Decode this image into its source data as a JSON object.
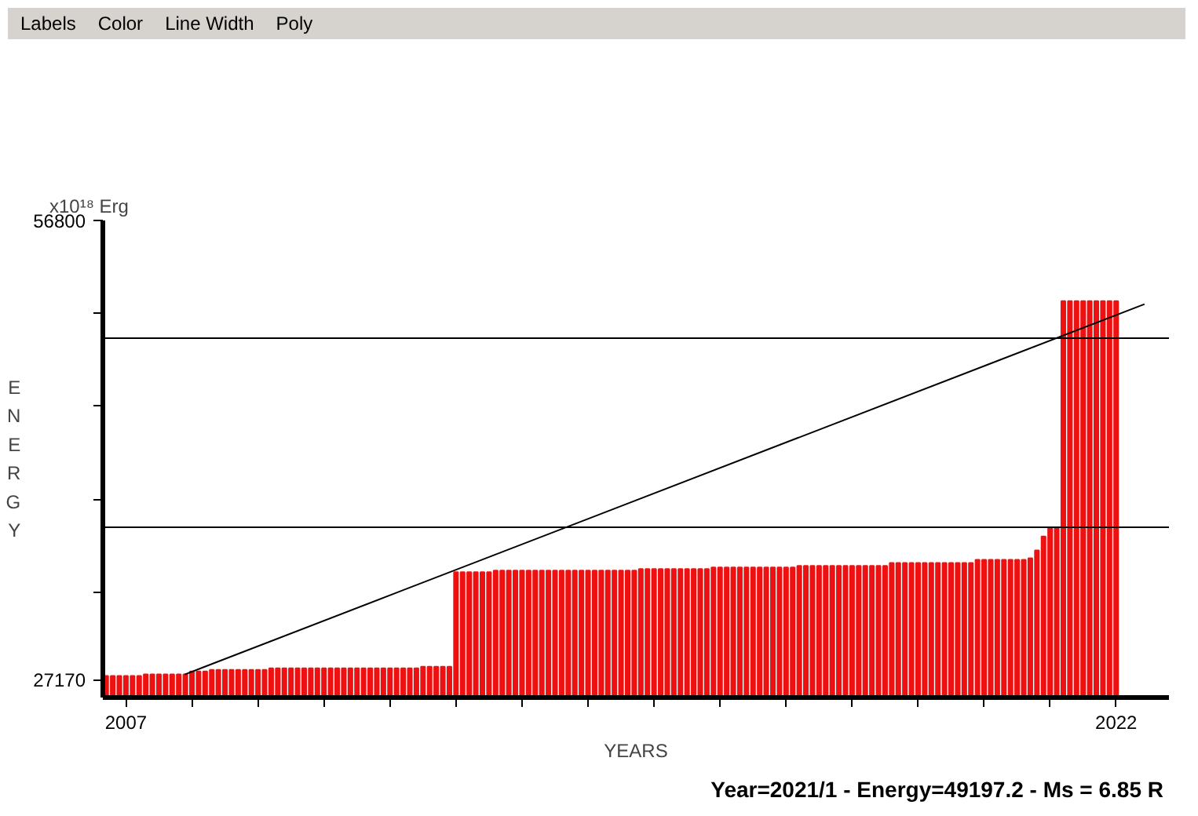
{
  "chart_data": {
    "type": "bar",
    "xlabel": "YEARS",
    "ylabel": "ENERGY",
    "annotations": [
      "Labels",
      "Color",
      "Line Width",
      "Poly",
      "x10¹⁸ Erg",
      "Year=2021/1 - Energy=49197.2 - Ms = 6.85 R"
    ],
    "x": [
      2006.7,
      2006.8,
      2006.9,
      2007.0,
      2007.1,
      2007.2,
      2007.3,
      2007.4,
      2007.5,
      2007.6,
      2007.7,
      2007.8,
      2007.9,
      2008.0,
      2008.1,
      2008.2,
      2008.3,
      2008.4,
      2008.5,
      2008.6,
      2008.7,
      2008.8,
      2008.9,
      2009.0,
      2009.1,
      2009.2,
      2009.3,
      2009.4,
      2009.5,
      2009.6,
      2009.7,
      2009.8,
      2009.9,
      2010.0,
      2010.1,
      2010.2,
      2010.3,
      2010.4,
      2010.5,
      2010.6,
      2010.7,
      2010.8,
      2010.9,
      2011.0,
      2011.1,
      2011.2,
      2011.3,
      2011.4,
      2011.5,
      2011.6,
      2011.7,
      2011.8,
      2011.9,
      2012.0,
      2012.1,
      2012.2,
      2012.3,
      2012.4,
      2012.5,
      2012.6,
      2012.7,
      2012.8,
      2012.9,
      2013.0,
      2013.1,
      2013.2,
      2013.3,
      2013.4,
      2013.5,
      2013.6,
      2013.7,
      2013.8,
      2013.9,
      2014.0,
      2014.1,
      2014.2,
      2014.3,
      2014.4,
      2014.5,
      2014.6,
      2014.7,
      2014.8,
      2014.9,
      2015.0,
      2015.1,
      2015.2,
      2015.3,
      2015.4,
      2015.5,
      2015.6,
      2015.7,
      2015.8,
      2015.9,
      2016.0,
      2016.1,
      2016.2,
      2016.3,
      2016.4,
      2016.5,
      2016.6,
      2016.7,
      2016.8,
      2016.9,
      2017.0,
      2017.1,
      2017.2,
      2017.3,
      2017.4,
      2017.5,
      2017.6,
      2017.7,
      2017.8,
      2017.9,
      2018.0,
      2018.1,
      2018.2,
      2018.3,
      2018.4,
      2018.5,
      2018.6,
      2018.7,
      2018.8,
      2018.9,
      2019.0,
      2019.1,
      2019.2,
      2019.3,
      2019.4,
      2019.5,
      2019.6,
      2019.7,
      2019.8,
      2019.9,
      2020.0,
      2020.1,
      2020.2,
      2020.3,
      2020.4,
      2020.5,
      2020.6,
      2020.7,
      2020.8,
      2020.9,
      2021.0,
      2021.1,
      2021.2,
      2021.3,
      2021.4,
      2021.5,
      2021.6,
      2021.7,
      2021.8,
      2021.9,
      2022.0
    ],
    "series": [
      {
        "color": "#ee1111",
        "values": [
          27400,
          27400,
          27400,
          27400,
          27400,
          27400,
          27500,
          27500,
          27500,
          27500,
          27500,
          27500,
          27500,
          27700,
          27700,
          27700,
          27800,
          27800,
          27800,
          27800,
          27800,
          27800,
          27800,
          27800,
          27800,
          27900,
          27900,
          27900,
          27900,
          27900,
          27900,
          27900,
          27900,
          27900,
          27900,
          27900,
          27900,
          27900,
          27900,
          27900,
          27900,
          27900,
          27900,
          27900,
          27900,
          27900,
          27900,
          27900,
          28000,
          28000,
          28000,
          28000,
          28000,
          34100,
          34100,
          34100,
          34100,
          34100,
          34100,
          34200,
          34200,
          34200,
          34200,
          34200,
          34200,
          34200,
          34200,
          34200,
          34200,
          34200,
          34200,
          34200,
          34200,
          34200,
          34200,
          34200,
          34200,
          34200,
          34200,
          34200,
          34200,
          34300,
          34300,
          34300,
          34300,
          34300,
          34300,
          34300,
          34300,
          34300,
          34300,
          34300,
          34400,
          34400,
          34400,
          34400,
          34400,
          34400,
          34400,
          34400,
          34400,
          34400,
          34400,
          34400,
          34400,
          34500,
          34500,
          34500,
          34500,
          34500,
          34500,
          34500,
          34500,
          34500,
          34500,
          34500,
          34500,
          34500,
          34500,
          34700,
          34700,
          34700,
          34700,
          34700,
          34700,
          34700,
          34700,
          34700,
          34700,
          34700,
          34700,
          34700,
          34900,
          34900,
          34900,
          34900,
          34900,
          34900,
          34900,
          34900,
          35000,
          35500,
          36400,
          37000,
          37000,
          51600,
          51600,
          51600,
          51600,
          51600,
          51600,
          51600,
          51600,
          51600
        ]
      },
      {
        "type": "line",
        "color": "#000000",
        "x": [
          2007.89,
          2022.43
        ],
        "values": [
          27500,
          51400
        ]
      }
    ],
    "xlim": [
      2006.65,
      2022.8
    ],
    "xticks": [
      2007,
      {
        "value": 2008,
        "label": null
      },
      {
        "value": 2009,
        "label": null
      },
      {
        "value": 2010,
        "label": null
      },
      {
        "value": 2011,
        "label": null
      },
      {
        "value": 2012,
        "label": null
      },
      {
        "value": 2013,
        "label": null
      },
      {
        "value": 2014,
        "label": null
      },
      {
        "value": 2015,
        "label": null
      },
      {
        "value": 2016,
        "label": null
      },
      {
        "value": 2017,
        "label": null
      },
      {
        "value": 2018,
        "label": null
      },
      {
        "value": 2019,
        "label": null
      },
      {
        "value": 2020,
        "label": null
      },
      {
        "value": 2021,
        "label": null
      },
      2022
    ],
    "ylim": [
      26010,
      56800
    ],
    "yticks": [
      27170,
      {
        "value": 32800,
        "label": null
      },
      {
        "value": 38800,
        "label": null
      },
      {
        "value": 44800,
        "label": null
      },
      {
        "value": 50800,
        "label": null
      },
      56800
    ],
    "ref_lines": [
      {
        "axis": "y",
        "value": 49200,
        "color": "#000000"
      },
      {
        "axis": "y",
        "value": 37000,
        "color": "#000000"
      }
    ],
    "grid": false
  }
}
